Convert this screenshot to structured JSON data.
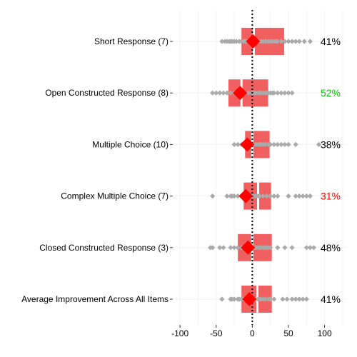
{
  "chart_data": {
    "type": "boxplot",
    "xlim": [
      -110,
      130
    ],
    "xticks": [
      -100,
      -50,
      0,
      50,
      100
    ],
    "grid": true,
    "reference_line_x": 0,
    "colors": {
      "box": "#f06060",
      "mean_marker": "#ff0000",
      "points": "#aaaaaa",
      "reference_line": "#000000",
      "pct_default": "#000000",
      "pct_high": "#00cc00",
      "pct_low": "#ff0000",
      "grid": "#f2f2f2"
    },
    "categories": [
      {
        "label": "Short Response (7)",
        "pct": "41%",
        "pct_color": "default",
        "box": [
          -15,
          2,
          44
        ],
        "mean": 1,
        "points": [
          -42,
          -38,
          -35,
          -32,
          -30,
          -28,
          -25,
          -22,
          -18,
          -15,
          -12,
          -10,
          -8,
          -5,
          -3,
          0,
          2,
          5,
          8,
          12,
          15,
          18,
          22,
          25,
          28,
          32,
          35,
          40,
          45,
          50,
          55,
          60,
          65,
          72,
          80
        ]
      },
      {
        "label": "Open Constructed Response (8)",
        "pct": "52%",
        "pct_color": "high",
        "box": [
          -33,
          -15,
          22
        ],
        "mean": -17,
        "points": [
          -55,
          -50,
          -45,
          -40,
          -35,
          -30,
          -25,
          -20,
          -15,
          -10,
          -5,
          0,
          3,
          5,
          8,
          10,
          12,
          15,
          18,
          20,
          22,
          25,
          28,
          30,
          35,
          40,
          45,
          50,
          55
        ]
      },
      {
        "label": "Multiple Choice (10)",
        "pct": "38%",
        "pct_color": "default",
        "box": [
          -10,
          0,
          24
        ],
        "mean": -7,
        "points": [
          -25,
          -20,
          -15,
          -12,
          -8,
          -5,
          -2,
          0,
          2,
          5,
          8,
          10,
          12,
          15,
          18,
          22,
          25,
          30,
          35,
          40,
          45,
          50,
          60,
          92
        ]
      },
      {
        "label": "Complex Multiple Choice (7)",
        "pct": "31%",
        "pct_color": "low",
        "box": [
          -12,
          8,
          26
        ],
        "mean": -9,
        "points": [
          -55,
          -35,
          -30,
          -28,
          -25,
          -20,
          -15,
          -10,
          -8,
          -5,
          0,
          3,
          5,
          8,
          10,
          15,
          20,
          25,
          30,
          35,
          50,
          60,
          65,
          70,
          75,
          80
        ]
      },
      {
        "label": "Closed Constructed Response (3)",
        "pct": "48%",
        "pct_color": "default",
        "box": [
          -20,
          0,
          27
        ],
        "mean": -6,
        "points": [
          -58,
          -55,
          -45,
          -40,
          -30,
          -25,
          -20,
          -15,
          -10,
          -5,
          0,
          3,
          5,
          8,
          10,
          12,
          15,
          18,
          20,
          22,
          25,
          35,
          45,
          55,
          75,
          80,
          85
        ]
      },
      {
        "label": "Average Improvement Across All Items",
        "pct": "41%",
        "pct_color": "default",
        "box": [
          -15,
          7,
          27
        ],
        "mean": -4,
        "points": [
          -42,
          -30,
          -28,
          -25,
          -20,
          -18,
          -15,
          -12,
          -10,
          -8,
          -5,
          -3,
          0,
          2,
          5,
          8,
          10,
          12,
          15,
          18,
          22,
          25,
          30,
          42,
          48,
          55,
          60,
          65,
          70,
          75
        ]
      }
    ]
  }
}
